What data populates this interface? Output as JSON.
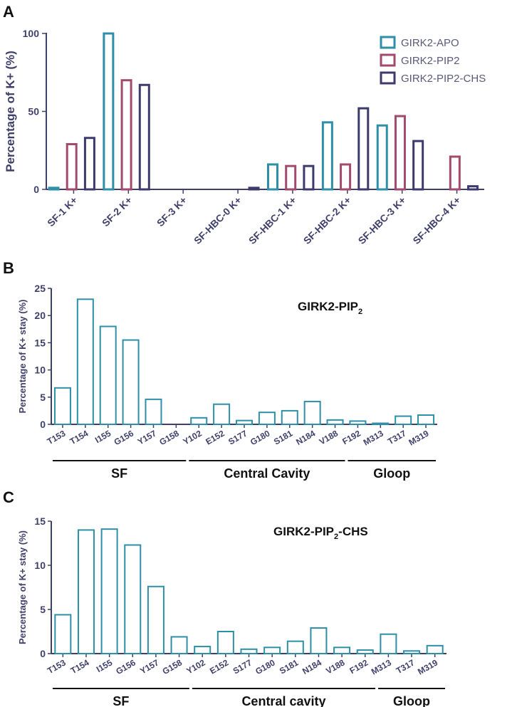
{
  "colors": {
    "apo": "#2e8fa8",
    "pip2": "#a14a6c",
    "chs": "#3d3a6e",
    "single": "#2e8fa8",
    "axis": "#3f3f6b"
  },
  "chart_data": [
    {
      "id": "A",
      "panel": "A",
      "type": "bar",
      "ylabel": "Percentage of K+  (%)",
      "ylim": [
        0,
        100
      ],
      "yticks": [
        "0",
        "50",
        "100"
      ],
      "categories": [
        "SF-1 K+",
        "SF-2 K+",
        "SF-3 K+",
        "SF-HBC-0 K+",
        "SF-HBC-1 K+",
        "SF-HBC-2 K+",
        "SF-HBC-3 K+",
        "SF-HBC-4 K+"
      ],
      "series": [
        {
          "name": "GIRK2-APO",
          "color": "#2e8fa8",
          "values": [
            1,
            100,
            0,
            0,
            16,
            43,
            41,
            0
          ]
        },
        {
          "name": "GIRK2-PIP2",
          "color": "#a14a6c",
          "values": [
            29,
            70,
            0,
            0,
            15,
            16,
            47,
            21
          ]
        },
        {
          "name": "GIRK2-PIP2-CHS",
          "color": "#3d3a6e",
          "values": [
            33,
            67,
            0,
            1,
            15,
            52,
            31,
            2
          ]
        }
      ]
    },
    {
      "id": "B",
      "panel": "B",
      "type": "bar",
      "title": "GIRK2-PIP",
      "title_sub": "2",
      "ylabel": "Percentage of K+ stay (%)",
      "ylim": [
        0,
        25
      ],
      "yticks": [
        "0",
        "5",
        "10",
        "15",
        "20",
        "25"
      ],
      "categories": [
        "T153",
        "T154",
        "I155",
        "G156",
        "Y157",
        "G158",
        "Y102",
        "E152",
        "S177",
        "G180",
        "S181",
        "N184",
        "V188",
        "F192",
        "M313",
        "T317",
        "M319"
      ],
      "values": [
        6.7,
        23.0,
        18.0,
        15.5,
        4.6,
        0.0,
        1.2,
        3.7,
        0.7,
        2.2,
        2.5,
        4.2,
        0.8,
        0.6,
        0.1,
        1.5,
        1.7
      ],
      "groups": [
        {
          "label": "SF",
          "from": 0,
          "to": 5
        },
        {
          "label": "Central Cavity",
          "from": 6,
          "to": 12
        },
        {
          "label": "Gloop",
          "from": 13,
          "to": 16
        }
      ]
    },
    {
      "id": "C",
      "panel": "C",
      "type": "bar",
      "title": "GIRK2-PIP",
      "title_sub": "2",
      "title_suffix": "-CHS",
      "ylabel": "Percentage of K+ stay (%)",
      "ylim": [
        0,
        15
      ],
      "yticks": [
        "0",
        "5",
        "10",
        "15"
      ],
      "categories": [
        "T153",
        "T154",
        "I155",
        "G156",
        "Y157",
        "G158",
        "Y102",
        "E152",
        "S177",
        "G180",
        "S181",
        "N184",
        "V188",
        "F192",
        "M313",
        "T317",
        "M319"
      ],
      "values": [
        4.4,
        14.0,
        14.1,
        12.3,
        7.6,
        1.9,
        0.8,
        2.5,
        0.5,
        0.7,
        1.4,
        2.9,
        0.7,
        0.4,
        2.2,
        0.3,
        0.9
      ],
      "groups": [
        {
          "label": "SF",
          "from": 0,
          "to": 5
        },
        {
          "label": "Central cavity",
          "from": 6,
          "to": 13
        },
        {
          "label": "Gloop",
          "from": 14,
          "to": 16
        }
      ]
    }
  ]
}
